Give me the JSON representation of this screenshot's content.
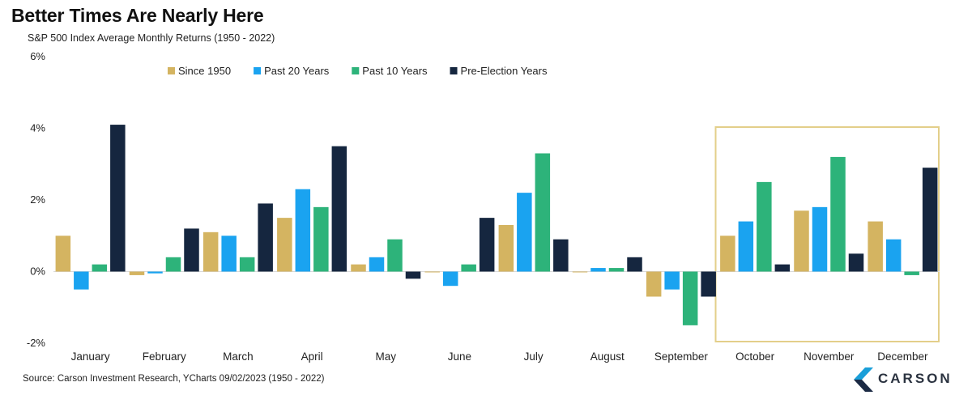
{
  "title": "Better Times Are Nearly Here",
  "subtitle": "S&P 500 Index Average Monthly Returns (1950 - 2022)",
  "source": "Source: Carson Investment Research, YCharts 09/02/2023 (1950 - 2022)",
  "logo": {
    "text": "CARSON",
    "icon": "carson-chevron-icon",
    "colors": [
      "#1a9fd9",
      "#1b2a44"
    ]
  },
  "highlight": {
    "categories": [
      "October",
      "November",
      "December"
    ],
    "color": "#e3cf8a"
  },
  "chart_data": {
    "type": "bar",
    "title": "Better Times Are Nearly Here",
    "subtitle": "S&P 500 Index Average Monthly Returns (1950 - 2022)",
    "categories": [
      "January",
      "February",
      "March",
      "April",
      "May",
      "June",
      "July",
      "August",
      "September",
      "October",
      "November",
      "December"
    ],
    "series": [
      {
        "name": "Since 1950",
        "color": "#d4b461",
        "values": [
          1.0,
          -0.1,
          1.1,
          1.5,
          0.2,
          0.0,
          1.3,
          0.0,
          -0.7,
          1.0,
          1.7,
          1.4
        ]
      },
      {
        "name": "Past 20 Years",
        "color": "#1aa3f0",
        "values": [
          -0.5,
          -0.05,
          1.0,
          2.3,
          0.4,
          -0.4,
          2.2,
          0.1,
          -0.5,
          1.4,
          1.8,
          0.9
        ]
      },
      {
        "name": "Past 10 Years",
        "color": "#2db37a",
        "values": [
          0.2,
          0.4,
          0.4,
          1.8,
          0.9,
          0.2,
          3.3,
          0.1,
          -1.5,
          2.5,
          3.2,
          -0.1
        ]
      },
      {
        "name": "Pre-Election Years",
        "color": "#15263f",
        "values": [
          4.1,
          1.2,
          1.9,
          3.5,
          -0.2,
          1.5,
          0.9,
          0.4,
          -0.7,
          0.2,
          0.5,
          2.9
        ]
      }
    ],
    "yticks": [
      "-2%",
      "0%",
      "2%",
      "4%",
      "6%"
    ],
    "ylim": [
      -2,
      6
    ],
    "xlabel": "",
    "ylabel": "",
    "grid": false,
    "legend": "top"
  }
}
